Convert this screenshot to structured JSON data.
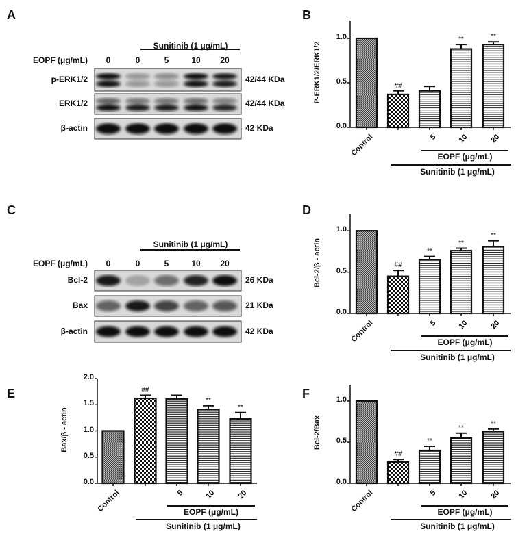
{
  "panels": {
    "A": {
      "label": "A",
      "treatment_header": "Sunitinib (1 μg/mL)",
      "dose_label": "EOPF (μg/mL)",
      "lanes": [
        "0",
        "0",
        "5",
        "10",
        "20"
      ],
      "rows": [
        {
          "protein": "p-ERK1/2",
          "size": "42/44 KDa"
        },
        {
          "protein": "ERK1/2",
          "size": "42/44 KDa"
        },
        {
          "protein": "β-actin",
          "size": "42 KDa"
        }
      ]
    },
    "C": {
      "label": "C",
      "treatment_header": "Sunitinib (1 μg/mL)",
      "dose_label": "EOPF (μg/mL)",
      "lanes": [
        "0",
        "0",
        "5",
        "10",
        "20"
      ],
      "rows": [
        {
          "protein": "Bcl-2",
          "size": "26 KDa"
        },
        {
          "protein": "Bax",
          "size": "21 KDa"
        },
        {
          "protein": "β-actin",
          "size": "42 KDa"
        }
      ]
    }
  },
  "chart_data": [
    {
      "panel": "B",
      "type": "bar",
      "categories": [
        "Control",
        "",
        "5",
        "10",
        "20"
      ],
      "values": [
        1.0,
        0.37,
        0.41,
        0.88,
        0.93
      ],
      "errors": [
        0,
        0.04,
        0.05,
        0.05,
        0.03
      ],
      "annotations": [
        "",
        "##",
        "",
        "**",
        "**"
      ],
      "ylabel": "P-ERK1/2/ERK1/2",
      "yticks": [
        "0.0",
        "0.5",
        "1.0"
      ],
      "ylim": [
        0,
        1.2
      ],
      "group_labels": {
        "eopf": "EOPF (μg/mL)",
        "sunitinib": "Sunitinib (1 μg/mL)"
      },
      "patterns": [
        "crosshatch",
        "checker",
        "horizontal",
        "horizontal",
        "horizontal"
      ]
    },
    {
      "panel": "D",
      "type": "bar",
      "categories": [
        "Control",
        "",
        "5",
        "10",
        "20"
      ],
      "values": [
        1.0,
        0.45,
        0.65,
        0.76,
        0.81
      ],
      "errors": [
        0,
        0.07,
        0.04,
        0.03,
        0.07
      ],
      "annotations": [
        "",
        "##",
        "**",
        "**",
        "**"
      ],
      "ylabel": "Bcl-2/β - actin",
      "yticks": [
        "0.0",
        "0.5",
        "1.0"
      ],
      "ylim": [
        0,
        1.2
      ],
      "group_labels": {
        "eopf": "EOPF (μg/mL)",
        "sunitinib": "Sunitinib (1 μg/mL)"
      },
      "patterns": [
        "crosshatch",
        "checker",
        "horizontal",
        "horizontal",
        "horizontal"
      ]
    },
    {
      "panel": "E",
      "type": "bar",
      "categories": [
        "Control",
        "",
        "5",
        "10",
        "20"
      ],
      "values": [
        1.0,
        1.62,
        1.61,
        1.41,
        1.23
      ],
      "errors": [
        0,
        0.06,
        0.07,
        0.07,
        0.12
      ],
      "annotations": [
        "",
        "##",
        "",
        "**",
        "**"
      ],
      "ylabel": "Bax/β - actin",
      "yticks": [
        "0.0",
        "0.5",
        "1.0",
        "1.5",
        "2.0"
      ],
      "ylim": [
        0,
        2.0
      ],
      "group_labels": {
        "eopf": "EOPF (μg/mL)",
        "sunitinib": "Sunitinib (1 μg/mL)"
      },
      "patterns": [
        "crosshatch",
        "checker",
        "horizontal",
        "horizontal",
        "horizontal"
      ]
    },
    {
      "panel": "F",
      "type": "bar",
      "categories": [
        "Control",
        "",
        "5",
        "10",
        "20"
      ],
      "values": [
        1.0,
        0.26,
        0.4,
        0.55,
        0.63
      ],
      "errors": [
        0,
        0.03,
        0.05,
        0.06,
        0.03
      ],
      "annotations": [
        "",
        "##",
        "**",
        "**",
        "**"
      ],
      "ylabel": "Bcl-2/Bax",
      "yticks": [
        "0.0",
        "0.5",
        "1.0"
      ],
      "ylim": [
        0,
        1.2
      ],
      "group_labels": {
        "eopf": "EOPF (μg/mL)",
        "sunitinib": "Sunitinib (1 μg/mL)"
      },
      "patterns": [
        "crosshatch",
        "checker",
        "horizontal",
        "horizontal",
        "horizontal"
      ]
    }
  ]
}
